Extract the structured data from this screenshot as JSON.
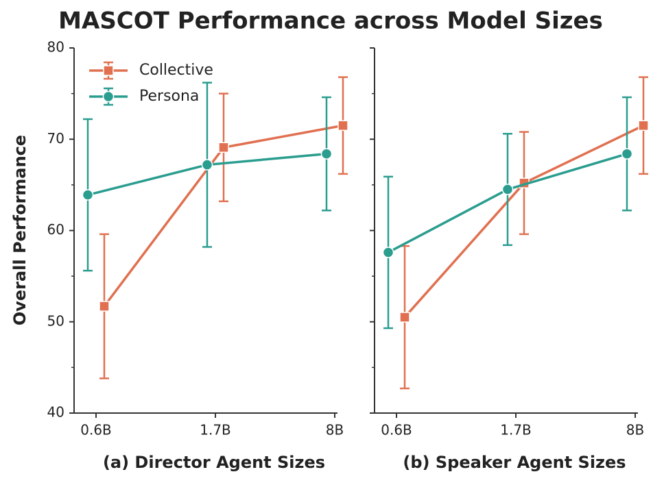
{
  "title": "MASCOT Performance across Model Sizes",
  "ylabel": "Overall Performance",
  "chart_data": [
    {
      "type": "line",
      "xlabel": "(a) Director Agent Sizes",
      "categories": [
        "0.6B",
        "1.7B",
        "8B"
      ],
      "series": [
        {
          "name": "Collective",
          "color": "#e07050",
          "marker": "square",
          "values": [
            51.7,
            69.1,
            71.5
          ],
          "errors": [
            7.9,
            5.9,
            5.3
          ]
        },
        {
          "name": "Persona",
          "color": "#2a9d8f",
          "marker": "circle",
          "values": [
            63.9,
            67.2,
            68.4
          ],
          "errors": [
            8.3,
            9.0,
            6.2
          ]
        }
      ],
      "ylim": [
        40,
        80
      ],
      "yticks": [
        40,
        50,
        60,
        70,
        80
      ],
      "minor_yticks": [
        45,
        55,
        65,
        75
      ],
      "legend": "upper left"
    },
    {
      "type": "line",
      "xlabel": "(b) Speaker Agent Sizes",
      "categories": [
        "0.6B",
        "1.7B",
        "8B"
      ],
      "series": [
        {
          "color": "#e07050",
          "marker": "square",
          "values": [
            50.5,
            65.2,
            71.5
          ],
          "errors": [
            7.8,
            5.6,
            5.3
          ]
        },
        {
          "color": "#2a9d8f",
          "marker": "circle",
          "values": [
            57.6,
            64.5,
            68.4
          ],
          "errors": [
            8.3,
            6.1,
            6.2
          ]
        }
      ],
      "ylim": [
        40,
        80
      ],
      "yticks": [
        40,
        50,
        60,
        70,
        80
      ],
      "minor_yticks": [
        45,
        55,
        65,
        75
      ]
    }
  ]
}
